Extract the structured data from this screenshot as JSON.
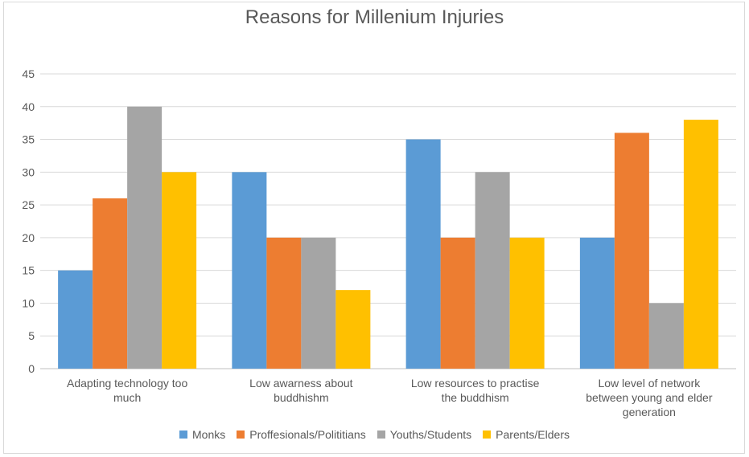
{
  "chart_data": {
    "type": "bar",
    "title": "Reasons for Millenium Injuries",
    "xlabel": "",
    "ylabel": "",
    "ylim": [
      0,
      45
    ],
    "yticks": [
      0,
      5,
      10,
      15,
      20,
      25,
      30,
      35,
      40,
      45
    ],
    "grid": true,
    "legend_position": "bottom",
    "categories": [
      [
        "Adapting technology too",
        "much"
      ],
      [
        "Low awarness about",
        "buddhishm"
      ],
      [
        "Low resources to practise",
        "the buddhism"
      ],
      [
        "Low level of network",
        "between young and elder",
        "generation"
      ]
    ],
    "series": [
      {
        "name": "Monks",
        "color": "#5b9bd5",
        "values": [
          15,
          30,
          35,
          20
        ]
      },
      {
        "name": "Proffesionals/Polititians",
        "color": "#ed7d31",
        "values": [
          26,
          20,
          20,
          36
        ]
      },
      {
        "name": "Youths/Students",
        "color": "#a5a5a5",
        "values": [
          40,
          20,
          30,
          10
        ]
      },
      {
        "name": "Parents/Elders",
        "color": "#ffc000",
        "values": [
          30,
          12,
          20,
          38
        ]
      }
    ]
  }
}
